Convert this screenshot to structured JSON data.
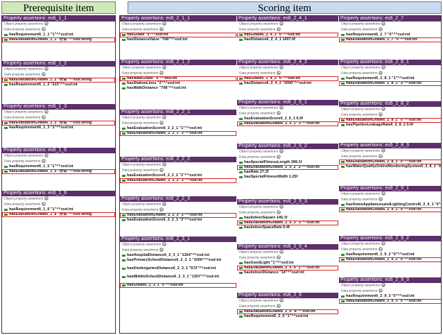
{
  "headers": {
    "prerequisite": "Prerequisite item",
    "scoring": "Scoring item"
  },
  "labels": {
    "object": "Object property assertions",
    "data": "Data property assertions",
    "pa": "Property assertions: ",
    "plus": "+"
  },
  "prereq": [
    {
      "title": "es6_1_1",
      "rows": [
        {
          "text": "hasRequirement6_1_1 \"1\"^^xsd:int",
          "box": false
        },
        {
          "text": "hasEvaluationGrade6_1_1 \"符合\"^^xsd:string",
          "box": true
        }
      ]
    },
    {
      "title": "es6_1_2",
      "rows": [
        {
          "text": "hasEvaluationGrade6_1_2 \"符合\"^^xsd:string",
          "box": true
        },
        {
          "text": "hasRequirement6_1_2 \"223\"^^xsd:int",
          "box": false
        }
      ]
    },
    {
      "title": "es6_1_3",
      "rows": [
        {
          "text": "hasEvaluationGrade6_1_3 \"符合\"^^xsd:string",
          "box": true
        },
        {
          "text": "hasRequirement6_1_3 \"1\"^^xsd:int",
          "box": false
        }
      ]
    },
    {
      "title": "es6_1_5",
      "rows": [
        {
          "text": "hasRequirement6_1_5 \"1\"^^xsd:int",
          "box": false
        },
        {
          "text": "hasEvaluationGrade6_1_5 \"符合\"^^xsd:string",
          "box": true
        }
      ]
    },
    {
      "title": "es6_1_6",
      "rows": [
        {
          "text": "hasRequirement6_1_6 \"1\"^^xsd:int",
          "box": false
        },
        {
          "text": "hasEvaluationGrade6_1_6 \"符合\"^^xsd:string",
          "box": true
        }
      ]
    }
  ],
  "score_col1": [
    {
      "title": "es6_2_1_1",
      "rows": [
        {
          "text": "hasGrade \"0\"^^xsd:int",
          "box": true
        },
        {
          "text": "hasDistanceValue \"708\"^^xsd:int",
          "box": false
        }
      ]
    },
    {
      "title": "es6_2_1_2",
      "rows": [
        {
          "text": "hasWalkGrade \"4\"^^xsd:int",
          "box": true
        },
        {
          "text": "hasStationLines \"2\"^^xsd:int",
          "box": false
        },
        {
          "text": "hasWalkDistance \"708\"^^xsd:int",
          "box": false
        }
      ]
    },
    {
      "title": "es6_2_2_1",
      "rows": [
        {
          "text": "hasEvaluationScore6_2_2_1 \"1\"^^xsd:int",
          "box": false
        },
        {
          "text": "hasEvaluationGrade6_2_2_1 \"3\"^^xsd:int",
          "box": true
        }
      ]
    },
    {
      "title": "es6_2_2_2",
      "rows": [
        {
          "text": "hasEvaluationScore6_2_2_2 \"1\"^^xsd:int",
          "box": false
        },
        {
          "text": "hasEvaluationGrade6_2_2_2 \"3\"^^xsd:int",
          "box": true
        }
      ]
    },
    {
      "title": "es6_2_2_3",
      "rows": [
        {
          "text": "hasEvaluationGrade6_2_2_3 \"2\"^^xsd:int",
          "box": true
        },
        {
          "text": "hasEvaluationScore6_2_2_3 \"2\"^^xsd:int",
          "box": false
        }
      ]
    },
    {
      "title": "es6_2_3_1",
      "rows": [
        {
          "text": "hasHospitalDistance6_2_3_1 \"1264\"^^xsd:int",
          "box": false
        },
        {
          "text": "hasPrimarySchoolDistance6_2_3_1 \"2000\"^^xsd:int",
          "box": false,
          "wrap": true
        },
        {
          "text": "hasKindergartenDistance6_2_3_1 \"572\"^^xsd:int",
          "box": false,
          "wrap": true
        },
        {
          "text": "hasMiddleSchoolDistance6_2_3_1 \"1357\"^^xsd:int",
          "box": false,
          "wrap": true
        },
        {
          "text": "hasGrade6_2_3_1 \"0\"^^xsd:int",
          "box": true
        }
      ]
    }
  ],
  "score_col2": [
    {
      "title": "es6_2_4_1",
      "rows": [
        {
          "text": "hasGrade6_2_4_1 \"0\"^^xsd:int",
          "box": true
        },
        {
          "text": "hasDistance6_2_4_1 1407.0f",
          "box": false
        }
      ]
    },
    {
      "title": "es6_2_4_2",
      "rows": [
        {
          "text": "hasGrade6_2_4_2 \"0\"^^xsd:int",
          "box": true
        },
        {
          "text": "hasDistance6_2_4_2 \"2000\"^^xsd:int",
          "box": false
        }
      ]
    },
    {
      "title": "es6_2_5_1",
      "rows": [
        {
          "text": "hasEvaluationScore6_2_5_1 6.0f",
          "box": false
        },
        {
          "text": "hasEvaluationGrade6_2_5_1 \"3\"^^xsd:int",
          "box": true
        }
      ]
    },
    {
      "title": "es6_2_5_2",
      "rows": [
        {
          "text": "hasSpecialFitnessLength 289.1f",
          "box": false
        },
        {
          "text": "hasEvaluationGrade6_2_5_2 \"2\"^^xsd:int",
          "box": true
        },
        {
          "text": "hasRate 27.2f",
          "box": false
        },
        {
          "text": "hasSpecialFitnessWidth 1.25f",
          "box": false
        }
      ]
    },
    {
      "title": "es6_2_5_3",
      "rows": [
        {
          "text": "hasIndoorSquare 145.1f",
          "box": false
        },
        {
          "text": "hasEvaluationGrade6_2_5_3 \"3\"^^xsd:int",
          "box": true
        },
        {
          "text": "hasIndoorSpaceRate 0.4f",
          "box": false
        }
      ]
    },
    {
      "title": "es6_2_5_4",
      "rows": [
        {
          "text": "hasGoodLight \"1\"^^xsd:int",
          "box": false
        },
        {
          "text": "hasEvaluationGrade6_2_5_4 \"2\"^^xsd:int",
          "box": true
        },
        {
          "text": "hasIndoorDistance \"14\"^^xsd:int",
          "box": false
        }
      ]
    },
    {
      "title": "es6_2_6",
      "rows": [
        {
          "text": "hasEvaluationGrade6_2_6 \"8\"^^xsd:int",
          "box": true
        },
        {
          "text": "hasRequirement6_2_6 \"1\"^^xsd:int",
          "box": false
        }
      ]
    }
  ],
  "score_col3": [
    {
      "title": "es6_2_7",
      "rows": [
        {
          "text": "hasRequirement6_2_7 \"0\"^^xsd:int",
          "box": false
        },
        {
          "text": "hasEvaluationGrade6_2_7 \"0\"^^xsd:int",
          "box": true
        }
      ]
    },
    {
      "title": "es6_2_8_1",
      "rows": [
        {
          "text": "hasRequirement6_2_8_1 \"1\"^^xsd:int",
          "box": false
        },
        {
          "text": "hasEvaluationGrade6_2_8_1 \"3\"^^xsd:int",
          "box": true
        }
      ]
    },
    {
      "title": "es6_2_8_2",
      "rows": [
        {
          "text": "hasEvaluationGrade6_2_8_2 \"0\"^^xsd:int",
          "box": true
        },
        {
          "text": "hasPipelineLeakageRate6_2_8_2 0.0f",
          "box": false
        }
      ]
    },
    {
      "title": "es6_2_8_3",
      "rows": [
        {
          "text": "hasEvaluationGrade6_2_8_3 \"0\"^^xsd:int",
          "box": true
        },
        {
          "text": "hasWaterQualityOnlineMonitoringSystem6_2_8_3 \"0\"^^xsd:int",
          "box": false
        }
      ]
    },
    {
      "title": "es6_2_9_1",
      "rows": [
        {
          "text": "hasHomeAppliancesandLightingControl6_2_9_1 \"0\"^^xsd:int",
          "box": false
        },
        {
          "text": "hasEvaluationGrade6_2_9_1 \"0\"^^xsd:int",
          "box": true
        }
      ]
    },
    {
      "title": "es6_2_9_2",
      "rows": [
        {
          "text": "hasRequirement6_2_9_2 \"0\"^^xsd:int",
          "box": false
        },
        {
          "text": "hasEvaluationGrade6_2_9_2 \"0\"^^xsd:int",
          "box": true
        }
      ]
    },
    {
      "title": "es6_2_9_3",
      "rows": [
        {
          "text": "hasRequirement6_2_9_3 \"0\"^^xsd:int",
          "box": false
        },
        {
          "text": "hasEvaluationGrade6_2_9_3 \"0\"^^xsd:int",
          "box": true
        }
      ]
    }
  ]
}
